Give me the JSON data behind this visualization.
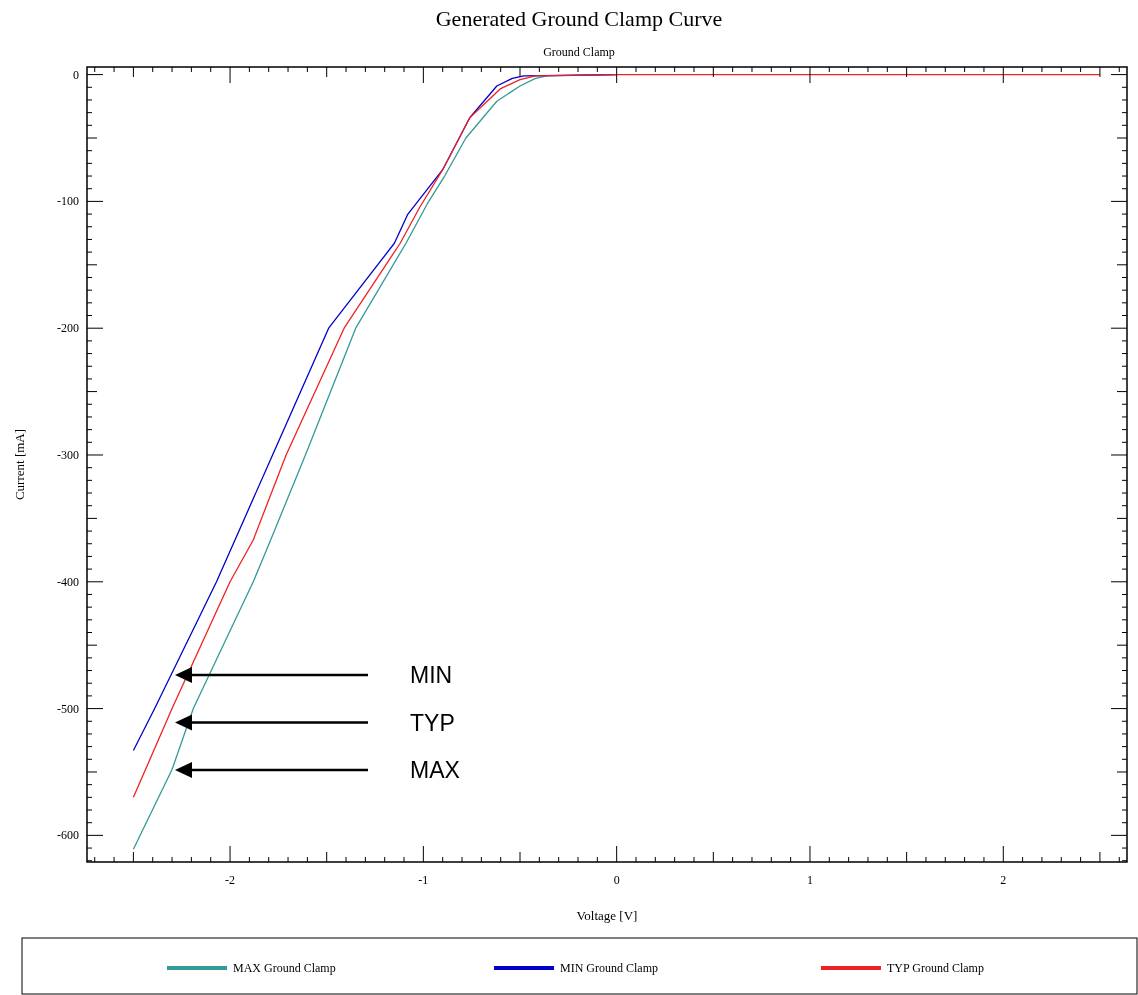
{
  "chart_data": {
    "type": "line",
    "title": "Generated Ground Clamp Curve",
    "subtitle": "Ground Clamp",
    "xlabel": "Voltage [V]",
    "ylabel": "Current [mA]",
    "xlim": [
      -2.74,
      2.64
    ],
    "ylim": [
      -621,
      6
    ],
    "xticks": [
      {
        "value": -2.7,
        "label": null
      },
      {
        "value": -2.6,
        "label": null
      },
      {
        "value": -2.5,
        "label": null
      },
      {
        "value": -2.4,
        "label": null
      },
      {
        "value": -2.3,
        "label": null
      },
      {
        "value": -2.2,
        "label": null
      },
      {
        "value": -2.1,
        "label": null
      },
      -2,
      {
        "value": -1.9,
        "label": null
      },
      {
        "value": -1.8,
        "label": null
      },
      {
        "value": -1.7,
        "label": null
      },
      {
        "value": -1.6,
        "label": null
      },
      {
        "value": -1.5,
        "label": null
      },
      {
        "value": -1.4,
        "label": null
      },
      {
        "value": -1.3,
        "label": null
      },
      {
        "value": -1.2,
        "label": null
      },
      {
        "value": -1.1,
        "label": null
      },
      -1,
      {
        "value": -0.9,
        "label": null
      },
      {
        "value": -0.8,
        "label": null
      },
      {
        "value": -0.7,
        "label": null
      },
      {
        "value": -0.6,
        "label": null
      },
      {
        "value": -0.5,
        "label": null
      },
      {
        "value": -0.4,
        "label": null
      },
      {
        "value": -0.3,
        "label": null
      },
      {
        "value": -0.2,
        "label": null
      },
      {
        "value": -0.1,
        "label": null
      },
      0,
      {
        "value": 0.1,
        "label": null
      },
      {
        "value": 0.2,
        "label": null
      },
      {
        "value": 0.3,
        "label": null
      },
      {
        "value": 0.4,
        "label": null
      },
      {
        "value": 0.5,
        "label": null
      },
      {
        "value": 0.6,
        "label": null
      },
      {
        "value": 0.7,
        "label": null
      },
      {
        "value": 0.8,
        "label": null
      },
      {
        "value": 0.9,
        "label": null
      },
      1,
      {
        "value": 1.1,
        "label": null
      },
      {
        "value": 1.2,
        "label": null
      },
      {
        "value": 1.3,
        "label": null
      },
      {
        "value": 1.4,
        "label": null
      },
      {
        "value": 1.5,
        "label": null
      },
      {
        "value": 1.6,
        "label": null
      },
      {
        "value": 1.7,
        "label": null
      },
      {
        "value": 1.8,
        "label": null
      },
      {
        "value": 1.9,
        "label": null
      },
      2,
      {
        "value": 2.1,
        "label": null
      },
      {
        "value": 2.2,
        "label": null
      },
      {
        "value": 2.3,
        "label": null
      },
      {
        "value": 2.4,
        "label": null
      },
      {
        "value": 2.5,
        "label": null
      },
      {
        "value": 2.6,
        "label": null
      }
    ],
    "yticks": [
      {
        "value": -620,
        "label": null
      },
      {
        "value": -610,
        "label": null
      },
      -600,
      {
        "value": -590,
        "label": null
      },
      {
        "value": -580,
        "label": null
      },
      {
        "value": -570,
        "label": null
      },
      {
        "value": -560,
        "label": null
      },
      {
        "value": -550,
        "label": null
      },
      {
        "value": -540,
        "label": null
      },
      {
        "value": -530,
        "label": null
      },
      {
        "value": -520,
        "label": null
      },
      {
        "value": -510,
        "label": null
      },
      -500,
      {
        "value": -490,
        "label": null
      },
      {
        "value": -480,
        "label": null
      },
      {
        "value": -470,
        "label": null
      },
      {
        "value": -460,
        "label": null
      },
      {
        "value": -450,
        "label": null
      },
      {
        "value": -440,
        "label": null
      },
      {
        "value": -430,
        "label": null
      },
      {
        "value": -420,
        "label": null
      },
      {
        "value": -410,
        "label": null
      },
      -400,
      {
        "value": -390,
        "label": null
      },
      {
        "value": -380,
        "label": null
      },
      {
        "value": -370,
        "label": null
      },
      {
        "value": -360,
        "label": null
      },
      {
        "value": -350,
        "label": null
      },
      {
        "value": -340,
        "label": null
      },
      {
        "value": -330,
        "label": null
      },
      {
        "value": -320,
        "label": null
      },
      {
        "value": -310,
        "label": null
      },
      -300,
      {
        "value": -290,
        "label": null
      },
      {
        "value": -280,
        "label": null
      },
      {
        "value": -270,
        "label": null
      },
      {
        "value": -260,
        "label": null
      },
      {
        "value": -250,
        "label": null
      },
      {
        "value": -240,
        "label": null
      },
      {
        "value": -230,
        "label": null
      },
      {
        "value": -220,
        "label": null
      },
      {
        "value": -210,
        "label": null
      },
      -200,
      {
        "value": -190,
        "label": null
      },
      {
        "value": -180,
        "label": null
      },
      {
        "value": -170,
        "label": null
      },
      {
        "value": -160,
        "label": null
      },
      {
        "value": -150,
        "label": null
      },
      {
        "value": -140,
        "label": null
      },
      {
        "value": -130,
        "label": null
      },
      {
        "value": -120,
        "label": null
      },
      {
        "value": -110,
        "label": null
      },
      -100,
      {
        "value": -90,
        "label": null
      },
      {
        "value": -80,
        "label": null
      },
      {
        "value": -70,
        "label": null
      },
      {
        "value": -60,
        "label": null
      },
      {
        "value": -50,
        "label": null
      },
      {
        "value": -40,
        "label": null
      },
      {
        "value": -30,
        "label": null
      },
      {
        "value": -20,
        "label": null
      },
      {
        "value": -10,
        "label": null
      },
      0
    ],
    "grid": false,
    "legend": "bottom",
    "marker": "none",
    "line_style": "solid",
    "series": [
      {
        "name": "MAX Ground Clamp",
        "color": "#339999",
        "x": [
          -2.5,
          -2.3,
          -2.19,
          -1.88,
          -1.79,
          -1.61,
          -1.35,
          -1.09,
          -0.98,
          -0.89,
          -0.78,
          -0.62,
          -0.5,
          -0.42,
          -0.36,
          0
        ],
        "values": [
          -611,
          -548,
          -500,
          -400,
          -367,
          -300,
          -200,
          -133,
          -102,
          -80,
          -50,
          -21,
          -9,
          -3,
          -1,
          0
        ]
      },
      {
        "name": "MIN Ground Clamp",
        "color": "#0000cc",
        "x": [
          -2.5,
          -2.39,
          -2.07,
          -1.78,
          -1.49,
          -1.15,
          -1.08,
          -0.9,
          -0.76,
          -0.62,
          -0.54,
          -0.48,
          0
        ],
        "values": [
          -533,
          -500,
          -400,
          -300,
          -200,
          -133,
          -110,
          -75,
          -34,
          -9,
          -3,
          -1,
          0
        ]
      },
      {
        "name": "TYP Ground Clamp",
        "color": "#ee2222",
        "x": [
          -2.5,
          -2.3,
          -2.0,
          -1.88,
          -1.71,
          -1.41,
          -1.12,
          -1.02,
          -0.9,
          -0.76,
          -0.6,
          -0.5,
          -0.42,
          0,
          1,
          2,
          2.5
        ],
        "values": [
          -570,
          -500,
          -400,
          -367,
          -300,
          -200,
          -133,
          -105,
          -75,
          -34,
          -11,
          -4,
          -1,
          0,
          0,
          0,
          0
        ]
      }
    ],
    "annotations": [
      "MIN",
      "TYP",
      "MAX"
    ]
  }
}
